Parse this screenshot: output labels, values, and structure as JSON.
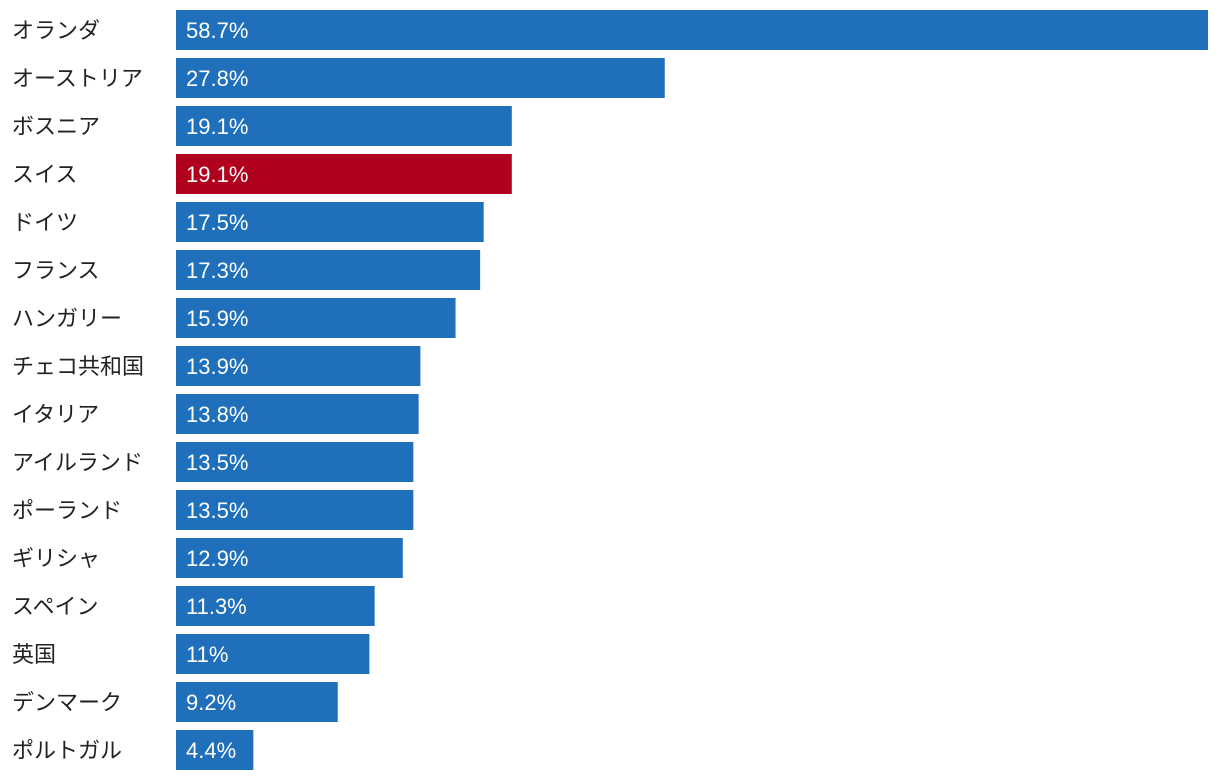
{
  "chart_data": {
    "type": "bar",
    "orientation": "horizontal",
    "title": "",
    "xlabel": "",
    "ylabel": "",
    "unit": "%",
    "xlim": [
      0,
      58.7
    ],
    "categories": [
      "オランダ",
      "オーストリア",
      "ボスニア",
      "スイス",
      "ドイツ",
      "フランス",
      "ハンガリー",
      "チェコ共和国",
      "イタリア",
      "アイルランド",
      "ポーランド",
      "ギリシャ",
      "スペイン",
      "英国",
      "デンマーク",
      "ポルトガル"
    ],
    "values": [
      58.7,
      27.8,
      19.1,
      19.1,
      17.5,
      17.3,
      15.9,
      13.9,
      13.8,
      13.5,
      13.5,
      12.9,
      11.3,
      11,
      9.2,
      4.4
    ],
    "value_labels": [
      "58.7%",
      "27.8%",
      "19.1%",
      "19.1%",
      "17.5%",
      "17.3%",
      "15.9%",
      "13.9%",
      "13.8%",
      "13.5%",
      "13.5%",
      "12.9%",
      "11.3%",
      "11%",
      "9.2%",
      "4.4%"
    ],
    "highlight_category": "スイス",
    "colors": {
      "default": "#1f6fbb",
      "highlight": "#b0001e"
    }
  }
}
